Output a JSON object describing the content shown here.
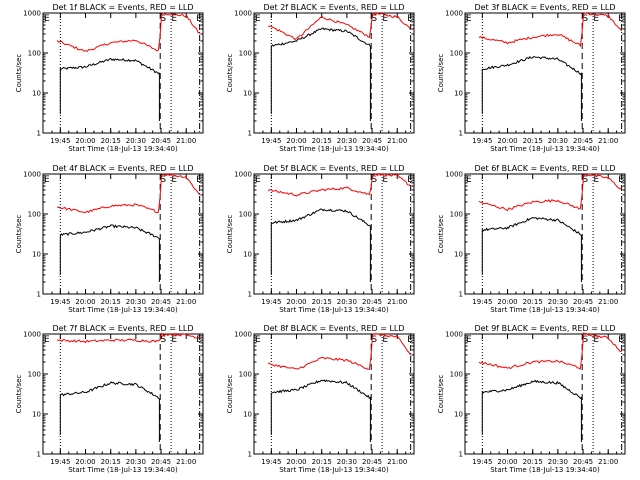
{
  "chart_data": [
    {
      "type": "line",
      "title": "Det 1f BLACK = Events, RED = LLD",
      "xlabel": "Start Time (18-Jul-13 19:34:40)",
      "ylabel": "Counts/sec",
      "y_scale": "log",
      "ylim": [
        1,
        1000
      ],
      "y_ticks": [
        "1",
        "10",
        "100",
        "1000"
      ],
      "x_ticks": [
        "19:45",
        "20:00",
        "20:15",
        "20:30",
        "20:45",
        "21:00"
      ],
      "markers": [
        "E",
        "S",
        "E",
        "E"
      ],
      "series": [
        {
          "name": "Events",
          "color": "#000000",
          "x": [
            "19:45",
            "20:00",
            "20:15",
            "20:30",
            "20:44"
          ],
          "y": [
            40,
            45,
            70,
            65,
            30
          ]
        },
        {
          "name": "LLD",
          "color": "#ff0000",
          "x": [
            "19:43",
            "20:00",
            "20:15",
            "20:30",
            "20:44",
            "20:45",
            "21:00",
            "21:08"
          ],
          "y": [
            200,
            110,
            180,
            210,
            110,
            1000,
            850,
            300
          ]
        }
      ]
    },
    {
      "type": "line",
      "title": "Det 2f BLACK = Events, RED = LLD",
      "xlabel": "Start Time (18-Jul-13 19:34:40)",
      "ylabel": "Counts/sec",
      "y_scale": "log",
      "ylim": [
        1,
        1000
      ],
      "y_ticks": [
        "1",
        "10",
        "100",
        "1000"
      ],
      "x_ticks": [
        "19:45",
        "20:00",
        "20:15",
        "20:30",
        "20:45",
        "21:00"
      ],
      "markers": [
        "E",
        "S",
        "E",
        "E"
      ],
      "series": [
        {
          "name": "Events",
          "color": "#000000",
          "x": [
            "19:45",
            "20:00",
            "20:15",
            "20:30",
            "20:44"
          ],
          "y": [
            150,
            200,
            400,
            350,
            150
          ]
        },
        {
          "name": "LLD",
          "color": "#ff0000",
          "x": [
            "19:43",
            "20:00",
            "20:15",
            "20:30",
            "20:44",
            "20:45",
            "21:00",
            "21:08"
          ],
          "y": [
            500,
            220,
            800,
            500,
            250,
            1000,
            800,
            400
          ]
        }
      ]
    },
    {
      "type": "line",
      "title": "Det 3f BLACK = Events, RED = LLD",
      "xlabel": "Start Time (18-Jul-13 19:34:40)",
      "ylabel": "Counts/sec",
      "y_scale": "log",
      "ylim": [
        1,
        1000
      ],
      "y_ticks": [
        "1",
        "10",
        "100",
        "1000"
      ],
      "x_ticks": [
        "19:45",
        "20:00",
        "20:15",
        "20:30",
        "20:45",
        "21:00"
      ],
      "markers": [
        "E",
        "S",
        "E",
        "E"
      ],
      "series": [
        {
          "name": "Events",
          "color": "#000000",
          "x": [
            "19:45",
            "20:00",
            "20:15",
            "20:30",
            "20:44"
          ],
          "y": [
            40,
            50,
            80,
            70,
            30
          ]
        },
        {
          "name": "LLD",
          "color": "#ff0000",
          "x": [
            "19:43",
            "20:00",
            "20:15",
            "20:30",
            "20:44",
            "20:45",
            "21:00",
            "21:08"
          ],
          "y": [
            250,
            180,
            250,
            300,
            150,
            1000,
            850,
            350
          ]
        }
      ]
    },
    {
      "type": "line",
      "title": "Det 4f BLACK = Events, RED = LLD",
      "xlabel": "Start Time (18-Jul-13 19:34:40)",
      "ylabel": "Counts/sec",
      "y_scale": "log",
      "ylim": [
        1,
        1000
      ],
      "y_ticks": [
        "1",
        "10",
        "100",
        "1000"
      ],
      "x_ticks": [
        "19:45",
        "20:00",
        "20:15",
        "20:30",
        "20:45",
        "21:00"
      ],
      "markers": [
        "E",
        "S",
        "E",
        "E"
      ],
      "series": [
        {
          "name": "Events",
          "color": "#000000",
          "x": [
            "19:45",
            "20:00",
            "20:15",
            "20:30",
            "20:44"
          ],
          "y": [
            30,
            35,
            50,
            45,
            25
          ]
        },
        {
          "name": "LLD",
          "color": "#ff0000",
          "x": [
            "19:43",
            "20:00",
            "20:15",
            "20:30",
            "20:44",
            "20:45",
            "21:00",
            "21:08"
          ],
          "y": [
            150,
            110,
            160,
            170,
            110,
            1000,
            850,
            300
          ]
        }
      ]
    },
    {
      "type": "line",
      "title": "Det 5f BLACK = Events, RED = LLD",
      "xlabel": "Start Time (18-Jul-13 19:34:40)",
      "ylabel": "Counts/sec",
      "y_scale": "log",
      "ylim": [
        1,
        1000
      ],
      "y_ticks": [
        "1",
        "10",
        "100",
        "1000"
      ],
      "x_ticks": [
        "19:45",
        "20:00",
        "20:15",
        "20:30",
        "20:45",
        "21:00"
      ],
      "markers": [
        "E",
        "S",
        "E",
        "E"
      ],
      "series": [
        {
          "name": "Events",
          "color": "#000000",
          "x": [
            "19:45",
            "20:00",
            "20:15",
            "20:30",
            "20:44"
          ],
          "y": [
            60,
            70,
            130,
            120,
            50
          ]
        },
        {
          "name": "LLD",
          "color": "#ff0000",
          "x": [
            "19:43",
            "20:00",
            "20:15",
            "20:30",
            "20:44",
            "20:45",
            "21:00",
            "21:08"
          ],
          "y": [
            400,
            300,
            400,
            450,
            300,
            1000,
            900,
            500
          ]
        }
      ]
    },
    {
      "type": "line",
      "title": "Det 6f BLACK = Events, RED = LLD",
      "xlabel": "Start Time (18-Jul-13 19:34:40)",
      "ylabel": "Counts/sec",
      "y_scale": "log",
      "ylim": [
        1,
        1000
      ],
      "y_ticks": [
        "1",
        "10",
        "100",
        "1000"
      ],
      "x_ticks": [
        "19:45",
        "20:00",
        "20:15",
        "20:30",
        "20:45",
        "21:00"
      ],
      "markers": [
        "E",
        "S",
        "E",
        "E"
      ],
      "series": [
        {
          "name": "Events",
          "color": "#000000",
          "x": [
            "19:45",
            "20:00",
            "20:15",
            "20:30",
            "20:44"
          ],
          "y": [
            40,
            45,
            80,
            70,
            30
          ]
        },
        {
          "name": "LLD",
          "color": "#ff0000",
          "x": [
            "19:43",
            "20:00",
            "20:15",
            "20:30",
            "20:44",
            "20:45",
            "21:00",
            "21:08"
          ],
          "y": [
            200,
            130,
            200,
            220,
            130,
            1000,
            800,
            400
          ]
        }
      ]
    },
    {
      "type": "line",
      "title": "Det 7f BLACK = Events, RED = LLD",
      "xlabel": "Start Time (18-Jul-13 19:34:40)",
      "ylabel": "Counts/sec",
      "y_scale": "log",
      "ylim": [
        1,
        1000
      ],
      "y_ticks": [
        "1",
        "10",
        "100",
        "1000"
      ],
      "x_ticks": [
        "19:45",
        "20:00",
        "20:15",
        "20:30",
        "20:45",
        "21:00"
      ],
      "markers": [
        "E",
        "S",
        "E",
        "E"
      ],
      "series": [
        {
          "name": "Events",
          "color": "#000000",
          "x": [
            "19:45",
            "20:00",
            "20:15",
            "20:30",
            "20:44"
          ],
          "y": [
            30,
            35,
            60,
            55,
            25
          ]
        },
        {
          "name": "LLD",
          "color": "#ff0000",
          "x": [
            "19:43",
            "20:00",
            "20:15",
            "20:30",
            "20:44",
            "20:45",
            "21:00",
            "21:08"
          ],
          "y": [
            700,
            650,
            700,
            700,
            650,
            1000,
            950,
            800
          ]
        }
      ]
    },
    {
      "type": "line",
      "title": "Det 8f BLACK = Events, RED = LLD",
      "xlabel": "Start Time (18-Jul-13 19:34:40)",
      "ylabel": "Counts/sec",
      "y_scale": "log",
      "ylim": [
        1,
        1000
      ],
      "y_ticks": [
        "1",
        "10",
        "100",
        "1000"
      ],
      "x_ticks": [
        "19:45",
        "20:00",
        "20:15",
        "20:30",
        "20:45",
        "21:00"
      ],
      "markers": [
        "E",
        "S",
        "E",
        "E"
      ],
      "series": [
        {
          "name": "Events",
          "color": "#000000",
          "x": [
            "19:45",
            "20:00",
            "20:15",
            "20:30",
            "20:44"
          ],
          "y": [
            35,
            40,
            70,
            60,
            25
          ]
        },
        {
          "name": "LLD",
          "color": "#ff0000",
          "x": [
            "19:43",
            "20:00",
            "20:15",
            "20:30",
            "20:44",
            "20:45",
            "21:00",
            "21:08"
          ],
          "y": [
            180,
            130,
            250,
            220,
            130,
            1000,
            850,
            300
          ]
        }
      ]
    },
    {
      "type": "line",
      "title": "Det 9f BLACK = Events, RED = LLD",
      "xlabel": "Start Time (18-Jul-13 19:34:40)",
      "ylabel": "Counts/sec",
      "y_scale": "log",
      "ylim": [
        1,
        1000
      ],
      "y_ticks": [
        "1",
        "10",
        "100",
        "1000"
      ],
      "x_ticks": [
        "19:45",
        "20:00",
        "20:15",
        "20:30",
        "20:45",
        "21:00"
      ],
      "markers": [
        "E",
        "S",
        "E",
        "E"
      ],
      "series": [
        {
          "name": "Events",
          "color": "#000000",
          "x": [
            "19:45",
            "20:00",
            "20:15",
            "20:30",
            "20:44"
          ],
          "y": [
            35,
            40,
            65,
            60,
            25
          ]
        },
        {
          "name": "LLD",
          "color": "#ff0000",
          "x": [
            "19:43",
            "20:00",
            "20:15",
            "20:30",
            "20:44",
            "20:45",
            "21:00",
            "21:08"
          ],
          "y": [
            200,
            140,
            200,
            210,
            140,
            1000,
            800,
            350
          ]
        }
      ]
    }
  ]
}
